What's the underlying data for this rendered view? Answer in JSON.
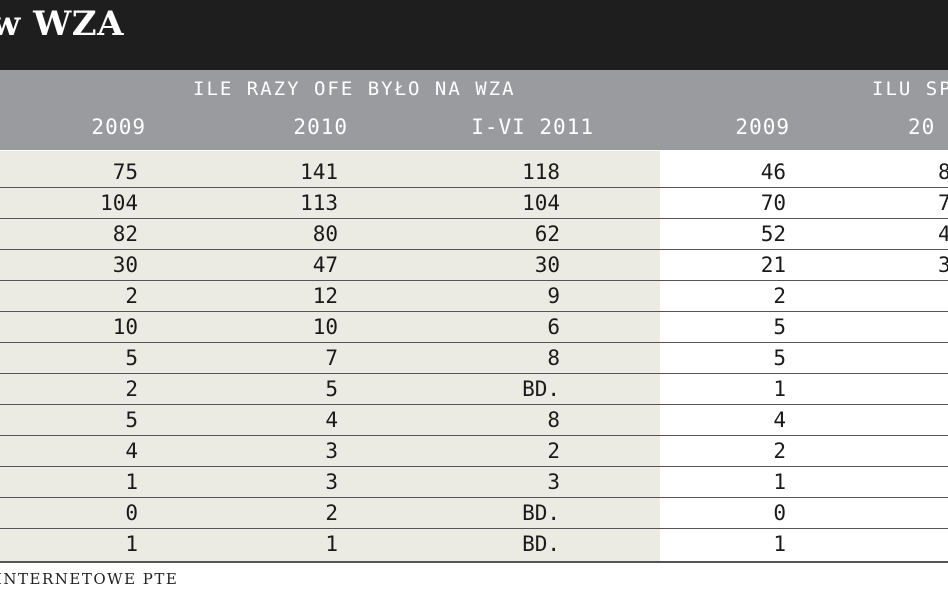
{
  "title": "w WZA",
  "header": {
    "group1": "ILE RAZY OFE BYŁO NA WZA",
    "group2": "ILU SPO",
    "columns": [
      "2009",
      "2010",
      "I-VI 2011",
      "2009",
      "20"
    ]
  },
  "rows": [
    [
      "75",
      "141",
      "118",
      "46",
      "8"
    ],
    [
      "104",
      "113",
      "104",
      "70",
      "7"
    ],
    [
      "82",
      "80",
      "62",
      "52",
      "4"
    ],
    [
      "30",
      "47",
      "30",
      "21",
      "3"
    ],
    [
      "2",
      "12",
      "9",
      "2",
      ""
    ],
    [
      "10",
      "10",
      "6",
      "5",
      ""
    ],
    [
      "5",
      "7",
      "8",
      "5",
      ""
    ],
    [
      "2",
      "5",
      "BD.",
      "1",
      ""
    ],
    [
      "5",
      "4",
      "8",
      "4",
      ""
    ],
    [
      "4",
      "3",
      "2",
      "2",
      ""
    ],
    [
      "1",
      "3",
      "3",
      "1",
      ""
    ],
    [
      "0",
      "2",
      "BD.",
      "0",
      ""
    ],
    [
      "1",
      "1",
      "BD.",
      "1",
      ""
    ]
  ],
  "source": "INTERNETOWE PTE"
}
